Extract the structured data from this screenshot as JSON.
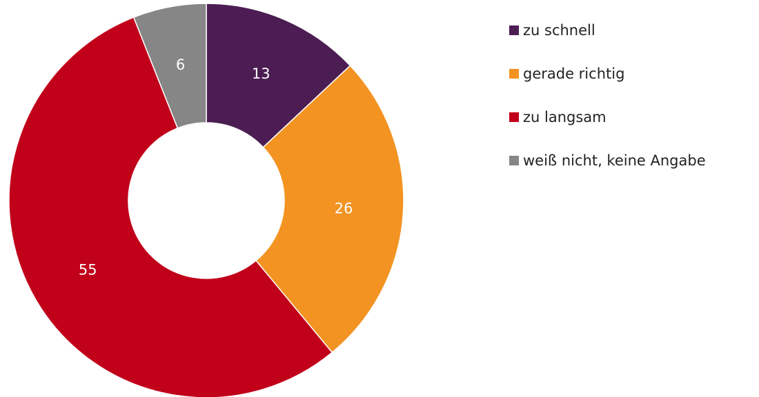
{
  "chart_data": {
    "type": "donut",
    "categories": [
      "zu schnell",
      "gerade richtig",
      "zu langsam",
      "weiß nicht, keine Angabe"
    ],
    "values": [
      13,
      26,
      55,
      6
    ],
    "colors": [
      "#4b1d52",
      "#f39322",
      "#c1001a",
      "#868686"
    ],
    "legend": "right"
  }
}
